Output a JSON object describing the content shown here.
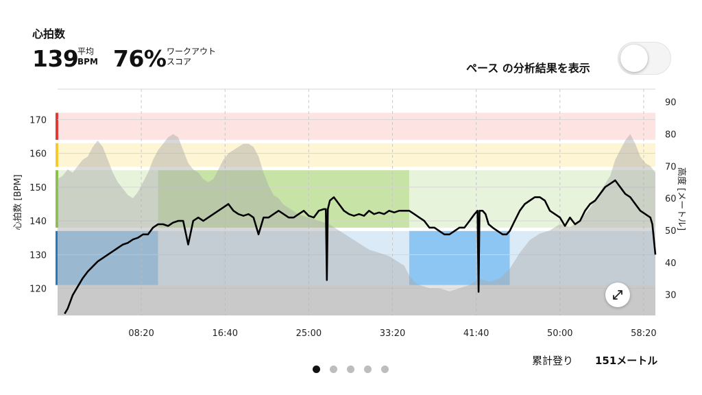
{
  "header": {
    "title": "心拍数",
    "heart_rate_value": "139",
    "heart_rate_unit_top": "平均",
    "heart_rate_unit_bottom": "BPM",
    "score_value": "76%",
    "score_label_line1": "ワークアウト",
    "score_label_line2": "スコア"
  },
  "pace_toggle": {
    "label": "ペース の分析結果を表示",
    "on": false
  },
  "footer": {
    "climb_label": "累計登り",
    "climb_value": "151メートル",
    "page_count": 5,
    "active_page": 0
  },
  "colors": {
    "zone_red": "#e53935",
    "zone_yellow": "#f9c82a",
    "zone_green": "#8bc34a",
    "zone_blue": "#1e7cc4",
    "hr_line": "#000000",
    "elevation": "#a8a8a8"
  },
  "chart_data": {
    "type": "line",
    "title": "",
    "xlabel": "",
    "ylabel": "心拍数 [BPM]",
    "y2label": "高度 [メートル]",
    "x_ticks": [
      "08:20",
      "16:40",
      "25:00",
      "33:20",
      "41:40",
      "50:00",
      "58:20"
    ],
    "x_tick_minutes": [
      8.333,
      16.667,
      25,
      33.333,
      41.667,
      50,
      58.333
    ],
    "xlim_minutes": [
      0,
      59.5
    ],
    "y_ticks": [
      120,
      130,
      140,
      150,
      160,
      170
    ],
    "ylim": [
      112,
      179
    ],
    "y2_ticks": [
      30,
      40,
      50,
      60,
      70,
      80,
      90
    ],
    "y2lim": [
      23.5,
      94
    ],
    "zones": [
      {
        "name": "red",
        "min": 164,
        "max": 172
      },
      {
        "name": "yellow",
        "min": 156,
        "max": 163
      },
      {
        "name": "green",
        "min": 138,
        "max": 155
      },
      {
        "name": "blue",
        "min": 121,
        "max": 137
      }
    ],
    "highlights": [
      {
        "zone": "blue",
        "from_min": 0,
        "to_min": 10
      },
      {
        "zone": "green",
        "from_min": 10,
        "to_min": 35
      },
      {
        "zone": "blue",
        "from_min": 35,
        "to_min": 45
      }
    ],
    "series": [
      {
        "name": "心拍数",
        "axis": "left",
        "points": [
          [
            0.7,
            112.5
          ],
          [
            1.0,
            114
          ],
          [
            1.5,
            118
          ],
          [
            2.0,
            120.5
          ],
          [
            2.5,
            123
          ],
          [
            3.0,
            125
          ],
          [
            3.5,
            126.5
          ],
          [
            4.0,
            128
          ],
          [
            4.5,
            129
          ],
          [
            5.0,
            130
          ],
          [
            5.5,
            131
          ],
          [
            6.0,
            132
          ],
          [
            6.5,
            133
          ],
          [
            7.0,
            133.5
          ],
          [
            7.5,
            134.5
          ],
          [
            8.0,
            135
          ],
          [
            8.5,
            136
          ],
          [
            9.0,
            136
          ],
          [
            9.5,
            138
          ],
          [
            10.0,
            139
          ],
          [
            10.5,
            139
          ],
          [
            11.0,
            138.5
          ],
          [
            11.5,
            139.5
          ],
          [
            12.0,
            140
          ],
          [
            12.5,
            140
          ],
          [
            13.0,
            133
          ],
          [
            13.5,
            140
          ],
          [
            14.0,
            141
          ],
          [
            14.5,
            140
          ],
          [
            15.0,
            141
          ],
          [
            15.5,
            142
          ],
          [
            16.0,
            143
          ],
          [
            16.5,
            144
          ],
          [
            17.0,
            145
          ],
          [
            17.5,
            143
          ],
          [
            18.0,
            142
          ],
          [
            18.5,
            141.5
          ],
          [
            19.0,
            142
          ],
          [
            19.5,
            141
          ],
          [
            20.0,
            136
          ],
          [
            20.5,
            141
          ],
          [
            21.0,
            141
          ],
          [
            21.5,
            142
          ],
          [
            22.0,
            143
          ],
          [
            22.5,
            142
          ],
          [
            23.0,
            141
          ],
          [
            23.5,
            141
          ],
          [
            24.0,
            142
          ],
          [
            24.5,
            143
          ],
          [
            25.0,
            141.5
          ],
          [
            25.5,
            141
          ],
          [
            26.0,
            143
          ],
          [
            26.5,
            143.5
          ],
          [
            26.7,
            143.5
          ],
          [
            26.8,
            122.5
          ],
          [
            26.9,
            143.5
          ],
          [
            27.1,
            146
          ],
          [
            27.5,
            147
          ],
          [
            28.0,
            145
          ],
          [
            28.5,
            143
          ],
          [
            29.0,
            142
          ],
          [
            29.5,
            141.5
          ],
          [
            30.0,
            142
          ],
          [
            30.5,
            141.5
          ],
          [
            31.0,
            143
          ],
          [
            31.5,
            142
          ],
          [
            32.0,
            142.5
          ],
          [
            32.5,
            142
          ],
          [
            33.0,
            143
          ],
          [
            33.5,
            142.5
          ],
          [
            34.0,
            143
          ],
          [
            34.5,
            143
          ],
          [
            35.0,
            143
          ],
          [
            35.5,
            142
          ],
          [
            36.0,
            141
          ],
          [
            36.5,
            140
          ],
          [
            37.0,
            138
          ],
          [
            37.5,
            138
          ],
          [
            38.0,
            137
          ],
          [
            38.5,
            136
          ],
          [
            39.0,
            136
          ],
          [
            39.5,
            137
          ],
          [
            40.0,
            138
          ],
          [
            40.5,
            138
          ],
          [
            41.0,
            140
          ],
          [
            41.5,
            142
          ],
          [
            41.8,
            143
          ],
          [
            41.9,
            119
          ],
          [
            42.0,
            143
          ],
          [
            42.3,
            143
          ],
          [
            42.6,
            142
          ],
          [
            42.9,
            139
          ],
          [
            43.3,
            138
          ],
          [
            43.8,
            137
          ],
          [
            44.3,
            136
          ],
          [
            44.7,
            136
          ],
          [
            45.0,
            137
          ],
          [
            45.5,
            140
          ],
          [
            46.0,
            143
          ],
          [
            46.5,
            145
          ],
          [
            47.0,
            146
          ],
          [
            47.5,
            147
          ],
          [
            48.0,
            147
          ],
          [
            48.5,
            146
          ],
          [
            49.0,
            143
          ],
          [
            49.5,
            142
          ],
          [
            50.0,
            141
          ],
          [
            50.5,
            138.5
          ],
          [
            51.0,
            141
          ],
          [
            51.5,
            139
          ],
          [
            52.0,
            140
          ],
          [
            52.5,
            143
          ],
          [
            53.0,
            145
          ],
          [
            53.5,
            146
          ],
          [
            54.0,
            148
          ],
          [
            54.5,
            150
          ],
          [
            55.0,
            151
          ],
          [
            55.5,
            152
          ],
          [
            56.0,
            150
          ],
          [
            56.5,
            148
          ],
          [
            57.0,
            147
          ],
          [
            57.5,
            145
          ],
          [
            58.0,
            143
          ],
          [
            58.5,
            142
          ],
          [
            59.0,
            141
          ],
          [
            59.2,
            139
          ],
          [
            59.5,
            130
          ]
        ]
      },
      {
        "name": "高度",
        "axis": "right",
        "points": [
          [
            0,
            66
          ],
          [
            0.5,
            67
          ],
          [
            1,
            69
          ],
          [
            1.5,
            68
          ],
          [
            2,
            70
          ],
          [
            2.5,
            72
          ],
          [
            3,
            73
          ],
          [
            3.5,
            76
          ],
          [
            4,
            78
          ],
          [
            4.5,
            76
          ],
          [
            5,
            72
          ],
          [
            5.5,
            68
          ],
          [
            6,
            65
          ],
          [
            6.5,
            63
          ],
          [
            7,
            61
          ],
          [
            7.5,
            60
          ],
          [
            8,
            62
          ],
          [
            8.5,
            65
          ],
          [
            9,
            68
          ],
          [
            9.5,
            72
          ],
          [
            10,
            75
          ],
          [
            10.5,
            77
          ],
          [
            11,
            79
          ],
          [
            11.5,
            80
          ],
          [
            12,
            79
          ],
          [
            12.5,
            75
          ],
          [
            13,
            71
          ],
          [
            13.5,
            69
          ],
          [
            14,
            68
          ],
          [
            14.5,
            66
          ],
          [
            15,
            65
          ],
          [
            15.5,
            66
          ],
          [
            16,
            69
          ],
          [
            16.5,
            72
          ],
          [
            17,
            74
          ],
          [
            17.5,
            75
          ],
          [
            18,
            76
          ],
          [
            18.5,
            77
          ],
          [
            19,
            77
          ],
          [
            19.5,
            76
          ],
          [
            20,
            73
          ],
          [
            20.5,
            68
          ],
          [
            21,
            64
          ],
          [
            21.5,
            61
          ],
          [
            22,
            60
          ],
          [
            22.5,
            58
          ],
          [
            23,
            57
          ],
          [
            23.5,
            56
          ],
          [
            24,
            55
          ],
          [
            25,
            54
          ],
          [
            26,
            53
          ],
          [
            27,
            52
          ],
          [
            28,
            50
          ],
          [
            29,
            48
          ],
          [
            30,
            46
          ],
          [
            31,
            44
          ],
          [
            32,
            43
          ],
          [
            33,
            42
          ],
          [
            34,
            40
          ],
          [
            34.5,
            39
          ],
          [
            35,
            36
          ],
          [
            35.5,
            34
          ],
          [
            36,
            33
          ],
          [
            37,
            32
          ],
          [
            38,
            32
          ],
          [
            39,
            31
          ],
          [
            40,
            32
          ],
          [
            41,
            33
          ],
          [
            42,
            35
          ],
          [
            43,
            34
          ],
          [
            44,
            35
          ],
          [
            45,
            38
          ],
          [
            46,
            43
          ],
          [
            47,
            47
          ],
          [
            48,
            49
          ],
          [
            49,
            50
          ],
          [
            50,
            52
          ],
          [
            51,
            51
          ],
          [
            52,
            53
          ],
          [
            53,
            57
          ],
          [
            54,
            62
          ],
          [
            55,
            67
          ],
          [
            55.5,
            72
          ],
          [
            56,
            75
          ],
          [
            56.5,
            78
          ],
          [
            57,
            80
          ],
          [
            57.5,
            77
          ],
          [
            58,
            73
          ],
          [
            58.5,
            71
          ],
          [
            59,
            70
          ],
          [
            59.5,
            68
          ]
        ]
      }
    ],
    "grid": true,
    "legend": "none"
  }
}
